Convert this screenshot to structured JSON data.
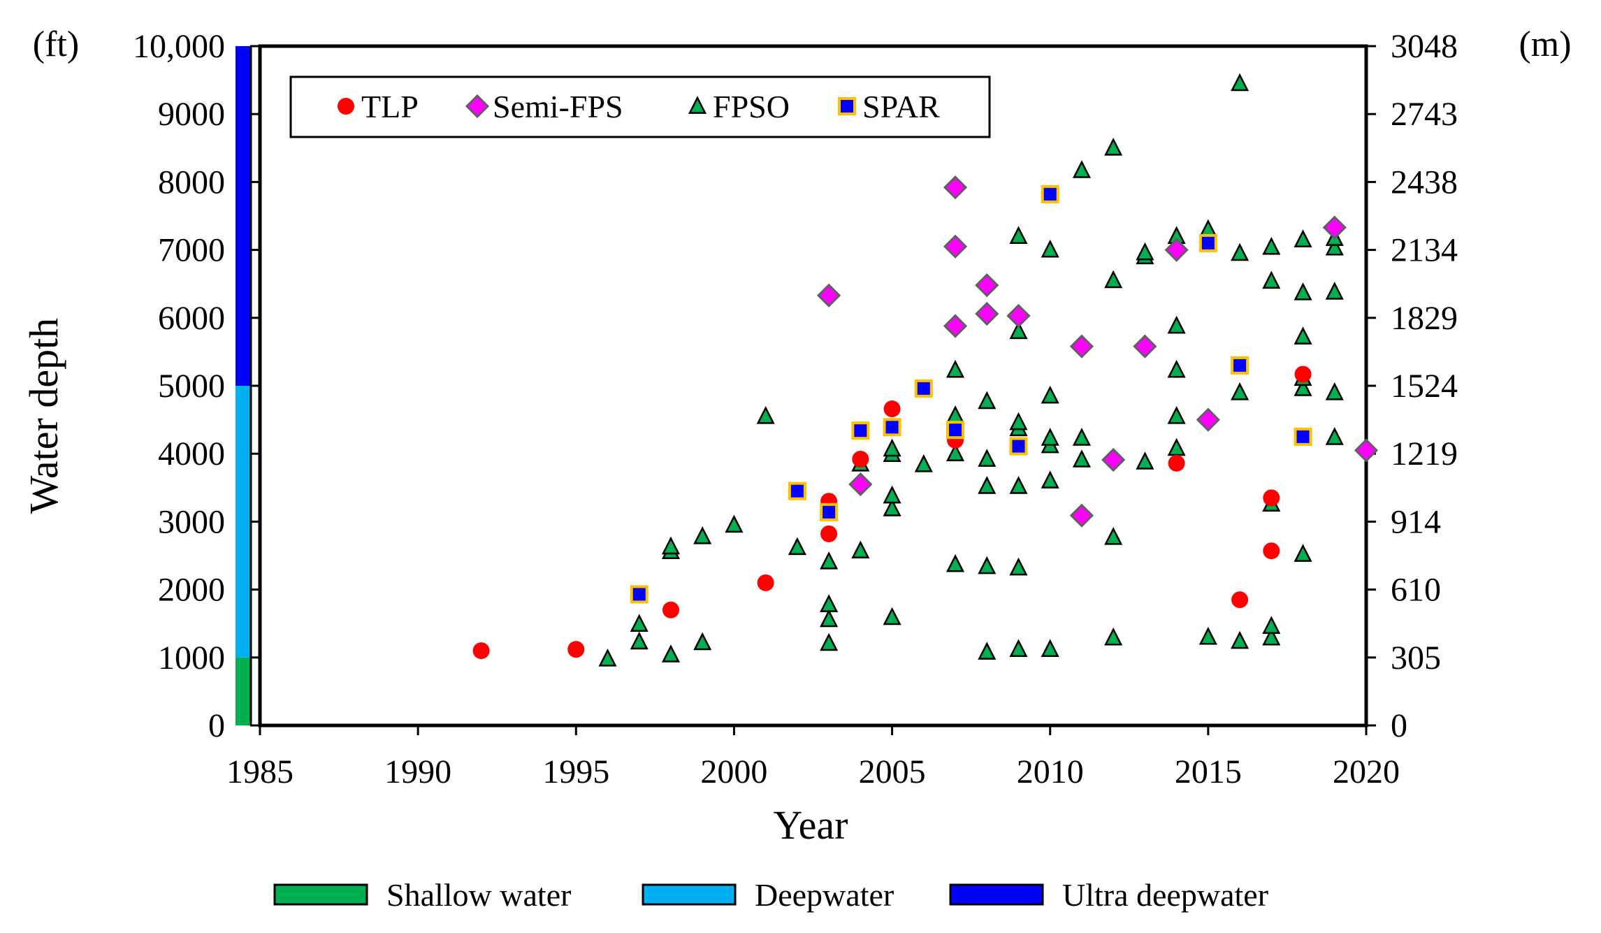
{
  "chart_data": {
    "type": "scatter",
    "title": "",
    "xlabel": "Year",
    "ylabel": "Water depth",
    "y_unit_left": "(ft)",
    "y_unit_right": "(m)",
    "xlim": [
      1985,
      2020
    ],
    "ylim": [
      0,
      10000
    ],
    "x_ticks": [
      1985,
      1990,
      1995,
      2000,
      2005,
      2010,
      2015,
      2020
    ],
    "y_ticks_left": [
      {
        "value": 0,
        "label": "0"
      },
      {
        "value": 1000,
        "label": "1000"
      },
      {
        "value": 2000,
        "label": "2000"
      },
      {
        "value": 3000,
        "label": "3000"
      },
      {
        "value": 4000,
        "label": "4000"
      },
      {
        "value": 5000,
        "label": "5000"
      },
      {
        "value": 6000,
        "label": "6000"
      },
      {
        "value": 7000,
        "label": "7000"
      },
      {
        "value": 8000,
        "label": "8000"
      },
      {
        "value": 9000,
        "label": "9000"
      },
      {
        "value": 10000,
        "label": "10,000"
      }
    ],
    "y_ticks_right": [
      {
        "value": 0,
        "label": "0"
      },
      {
        "value": 1000,
        "label": "305"
      },
      {
        "value": 2000,
        "label": "610"
      },
      {
        "value": 3000,
        "label": "914"
      },
      {
        "value": 4000,
        "label": "1219"
      },
      {
        "value": 5000,
        "label": "1524"
      },
      {
        "value": 6000,
        "label": "1829"
      },
      {
        "value": 7000,
        "label": "2134"
      },
      {
        "value": 8000,
        "label": "2438"
      },
      {
        "value": 9000,
        "label": "2743"
      },
      {
        "value": 10000,
        "label": "3048"
      }
    ],
    "legend_position": "top-left",
    "series": [
      {
        "name": "TLP",
        "marker": "circle",
        "color": "#ff0000",
        "points": [
          [
            1992,
            1100
          ],
          [
            1995,
            1120
          ],
          [
            1998,
            1700
          ],
          [
            2001,
            2100
          ],
          [
            2003,
            2820
          ],
          [
            2003,
            3300
          ],
          [
            2004,
            3920
          ],
          [
            2005,
            4660
          ],
          [
            2007,
            4200
          ],
          [
            2014,
            3860
          ],
          [
            2016,
            1850
          ],
          [
            2017,
            2570
          ],
          [
            2017,
            3350
          ],
          [
            2018,
            5170
          ]
        ]
      },
      {
        "name": "Semi-FPS",
        "marker": "diamond",
        "color": "#ff00ff",
        "points": [
          [
            2003,
            6330
          ],
          [
            2004,
            3550
          ],
          [
            2007,
            7920
          ],
          [
            2007,
            7050
          ],
          [
            2007,
            5880
          ],
          [
            2008,
            6480
          ],
          [
            2008,
            6060
          ],
          [
            2009,
            6030
          ],
          [
            2011,
            5580
          ],
          [
            2011,
            3090
          ],
          [
            2012,
            3910
          ],
          [
            2013,
            5580
          ],
          [
            2014,
            7000
          ],
          [
            2015,
            4500
          ],
          [
            2019,
            7330
          ],
          [
            2020,
            4050
          ]
        ]
      },
      {
        "name": "FPSO",
        "marker": "triangle",
        "color": "#00b050",
        "points": [
          [
            1996,
            980
          ],
          [
            1997,
            1230
          ],
          [
            1997,
            1490
          ],
          [
            1998,
            1040
          ],
          [
            1998,
            2560
          ],
          [
            1998,
            2630
          ],
          [
            1999,
            1220
          ],
          [
            1999,
            2780
          ],
          [
            2000,
            2950
          ],
          [
            2001,
            4550
          ],
          [
            2002,
            2620
          ],
          [
            2003,
            1210
          ],
          [
            2003,
            1560
          ],
          [
            2003,
            1780
          ],
          [
            2003,
            2410
          ],
          [
            2004,
            2570
          ],
          [
            2004,
            3850
          ],
          [
            2005,
            1590
          ],
          [
            2005,
            3190
          ],
          [
            2005,
            3380
          ],
          [
            2005,
            3990
          ],
          [
            2005,
            4070
          ],
          [
            2006,
            3840
          ],
          [
            2006,
            4950
          ],
          [
            2007,
            2370
          ],
          [
            2007,
            4000
          ],
          [
            2007,
            4560
          ],
          [
            2007,
            5230
          ],
          [
            2008,
            1080
          ],
          [
            2008,
            2340
          ],
          [
            2008,
            3520
          ],
          [
            2008,
            3920
          ],
          [
            2008,
            4770
          ],
          [
            2009,
            1120
          ],
          [
            2009,
            2320
          ],
          [
            2009,
            3520
          ],
          [
            2009,
            4370
          ],
          [
            2009,
            4460
          ],
          [
            2009,
            5800
          ],
          [
            2009,
            7200
          ],
          [
            2010,
            1120
          ],
          [
            2010,
            3600
          ],
          [
            2010,
            4120
          ],
          [
            2010,
            4230
          ],
          [
            2010,
            4850
          ],
          [
            2010,
            7000
          ],
          [
            2011,
            3910
          ],
          [
            2011,
            4230
          ],
          [
            2011,
            8170
          ],
          [
            2012,
            1290
          ],
          [
            2012,
            2770
          ],
          [
            2012,
            6550
          ],
          [
            2012,
            8500
          ],
          [
            2013,
            3880
          ],
          [
            2013,
            6900
          ],
          [
            2013,
            6960
          ],
          [
            2014,
            4080
          ],
          [
            2014,
            4550
          ],
          [
            2014,
            5230
          ],
          [
            2014,
            5880
          ],
          [
            2014,
            7070
          ],
          [
            2014,
            7200
          ],
          [
            2015,
            1300
          ],
          [
            2015,
            7300
          ],
          [
            2016,
            1240
          ],
          [
            2016,
            4900
          ],
          [
            2016,
            6950
          ],
          [
            2016,
            9450
          ],
          [
            2017,
            1290
          ],
          [
            2017,
            1460
          ],
          [
            2017,
            3260
          ],
          [
            2017,
            6540
          ],
          [
            2017,
            7040
          ],
          [
            2018,
            2520
          ],
          [
            2018,
            4960
          ],
          [
            2018,
            5110
          ],
          [
            2018,
            5720
          ],
          [
            2018,
            6370
          ],
          [
            2018,
            7150
          ],
          [
            2019,
            4240
          ],
          [
            2019,
            4900
          ],
          [
            2019,
            6380
          ],
          [
            2019,
            7030
          ],
          [
            2019,
            7170
          ]
        ]
      },
      {
        "name": "SPAR",
        "marker": "square",
        "color": "#0000ff",
        "edge": "#ffc000",
        "points": [
          [
            1997,
            1930
          ],
          [
            2002,
            3450
          ],
          [
            2003,
            3140
          ],
          [
            2004,
            4340
          ],
          [
            2005,
            4390
          ],
          [
            2006,
            4960
          ],
          [
            2007,
            4350
          ],
          [
            2009,
            4110
          ],
          [
            2010,
            7820
          ],
          [
            2015,
            7100
          ],
          [
            2016,
            5300
          ],
          [
            2018,
            4250
          ]
        ]
      }
    ],
    "depth_bar": [
      {
        "name": "Shallow water",
        "from": 0,
        "to": 1000,
        "color": "#00b050"
      },
      {
        "name": "Deepwater",
        "from": 1000,
        "to": 5000,
        "color": "#00b0f0"
      },
      {
        "name": "Ultra deepwater",
        "from": 5000,
        "to": 10000,
        "color": "#0000ff"
      }
    ]
  }
}
